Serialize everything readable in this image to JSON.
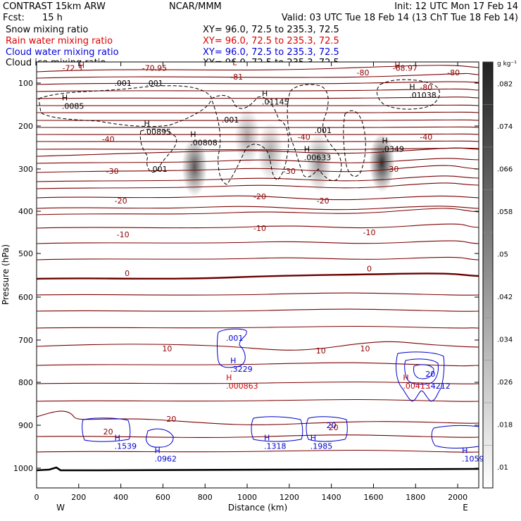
{
  "header": {
    "model": "CONTRAST 15km ARW",
    "center": "NCAR/MMM",
    "init": "Init: 12 UTC Mon 17 Feb 14",
    "fcst_label": "Fcst:",
    "fcst_value": "15 h",
    "valid": "Valid: 03 UTC Tue 18 Feb 14 (13 ChT Tue 18 Feb 14)"
  },
  "fields": [
    {
      "name": "Snow mixing ratio",
      "xy": "XY=  96.0, 72.5 to 235.3, 72.5",
      "color": "#000000"
    },
    {
      "name": "Rain water mixing ratio",
      "xy": "XY=  96.0, 72.5 to 235.3, 72.5",
      "color": "#dd0000"
    },
    {
      "name": "Cloud water mixing ratio",
      "xy": "XY=  96.0, 72.5 to 235.3, 72.5",
      "color": "#0000dd"
    },
    {
      "name": "Cloud ice mixing ratio",
      "xy": "XY=  96.0, 72.5 to 235.3, 72.5",
      "color": "#000000"
    }
  ],
  "chart_data": {
    "type": "heatmap",
    "xlabel": "Distance (km)",
    "ylabel": "Pressure (hPa)",
    "xlim": [
      0,
      2100
    ],
    "ylim": [
      1050,
      30
    ],
    "x_ticks": [
      "0",
      "200",
      "400",
      "600",
      "800",
      "1000",
      "1200",
      "1400",
      "1600",
      "1800",
      "2000"
    ],
    "y_ticks": [
      "100",
      "200",
      "300",
      "400",
      "500",
      "600",
      "700",
      "800",
      "900",
      "1000"
    ],
    "west_label": "W",
    "east_label": "E",
    "colorbar": {
      "unit": "g kg⁻¹",
      "labels": [
        ".01",
        ".018",
        ".026",
        ".034",
        ".042",
        ".05",
        ".058",
        ".066",
        ".074",
        ".082"
      ]
    },
    "snow_maxima": [
      {
        "x": 750,
        "p": 295,
        "value": 0.07
      },
      {
        "x": 1000,
        "p": 225,
        "value": 0.03
      },
      {
        "x": 1110,
        "p": 260,
        "value": 0.03
      },
      {
        "x": 1340,
        "p": 285,
        "value": 0.04
      },
      {
        "x": 1640,
        "p": 285,
        "value": 0.09
      }
    ],
    "temperature_labels": [
      {
        "x": 170,
        "p": 65,
        "text": "-72.3"
      },
      {
        "x": 560,
        "p": 65,
        "text": "-70.95"
      },
      {
        "x": 950,
        "p": 85,
        "text": "-81"
      },
      {
        "x": 1550,
        "p": 75,
        "text": "-80"
      },
      {
        "x": 1750,
        "p": 65,
        "text": "-68.97"
      },
      {
        "x": 1980,
        "p": 75,
        "text": "-80"
      },
      {
        "x": 1850,
        "p": 110,
        "text": "-80"
      },
      {
        "x": 340,
        "p": 230,
        "text": "-40"
      },
      {
        "x": 1270,
        "p": 225,
        "text": "-40"
      },
      {
        "x": 1850,
        "p": 225,
        "text": "-40"
      },
      {
        "x": 360,
        "p": 305,
        "text": "-30"
      },
      {
        "x": 1200,
        "p": 305,
        "text": "-30"
      },
      {
        "x": 1690,
        "p": 300,
        "text": "-30"
      },
      {
        "x": 400,
        "p": 375,
        "text": "-20"
      },
      {
        "x": 1060,
        "p": 365,
        "text": "-20"
      },
      {
        "x": 1360,
        "p": 375,
        "text": "-20"
      },
      {
        "x": 410,
        "p": 455,
        "text": "-10"
      },
      {
        "x": 1060,
        "p": 440,
        "text": "-10"
      },
      {
        "x": 1580,
        "p": 450,
        "text": "-10"
      },
      {
        "x": 430,
        "p": 545,
        "text": "0"
      },
      {
        "x": 1580,
        "p": 535,
        "text": "0"
      },
      {
        "x": 620,
        "p": 720,
        "text": "10"
      },
      {
        "x": 1350,
        "p": 725,
        "text": "10"
      },
      {
        "x": 1560,
        "p": 720,
        "text": "10"
      },
      {
        "x": 640,
        "p": 885,
        "text": "20"
      },
      {
        "x": 340,
        "p": 915,
        "text": "20"
      },
      {
        "x": 1410,
        "p": 905,
        "text": "20"
      }
    ],
    "extrema_labels": [
      {
        "kind": "low",
        "x": 930,
        "p": 58,
        "text": "L",
        "color": "#8b0000"
      },
      {
        "kind": "high",
        "x": 200,
        "p": 65,
        "text": "H",
        "color": "#8b0000"
      },
      {
        "kind": "high",
        "x": 1700,
        "p": 65,
        "text": "H",
        "color": "#8b0000"
      },
      {
        "kind": "ice_high",
        "x": 120,
        "p": 140,
        "text": "H",
        "value": ".0085"
      },
      {
        "kind": "ice_high",
        "x": 510,
        "p": 200,
        "text": "H",
        "value": ".00895"
      },
      {
        "kind": "ice_high",
        "x": 730,
        "p": 225,
        "text": "H",
        "value": ".00808"
      },
      {
        "kind": "ice_high",
        "x": 1070,
        "p": 130,
        "text": "H",
        "value": ".01145"
      },
      {
        "kind": "ice_high",
        "x": 1270,
        "p": 260,
        "text": "H",
        "value": ".00633"
      },
      {
        "kind": "ice_high",
        "x": 1640,
        "p": 240,
        "text": "H",
        "value": ".0349"
      },
      {
        "kind": "ice_high",
        "x": 1770,
        "p": 115,
        "text": "H",
        "value": ".01038"
      },
      {
        "kind": "cloud_high",
        "x": 920,
        "p": 755,
        "text": "H",
        "value": ".3229"
      },
      {
        "kind": "cloud_high",
        "x": 370,
        "p": 935,
        "text": "H",
        "value": ".1539"
      },
      {
        "kind": "cloud_high",
        "x": 560,
        "p": 965,
        "text": "H",
        "value": ".0962"
      },
      {
        "kind": "cloud_high",
        "x": 1080,
        "p": 935,
        "text": "H",
        "value": ".1318"
      },
      {
        "kind": "cloud_high",
        "x": 1300,
        "p": 935,
        "text": "H",
        "value": ".1985"
      },
      {
        "kind": "cloud_high",
        "x": 2020,
        "p": 965,
        "text": "H",
        "value": ".1059"
      },
      {
        "kind": "cloud_high",
        "x": 1860,
        "p": 795,
        "text": "",
        "value": ".4212"
      },
      {
        "kind": "rain_high",
        "x": 900,
        "p": 795,
        "text": "H",
        "value": ".000863"
      },
      {
        "kind": "rain_high",
        "x": 1740,
        "p": 795,
        "text": "H",
        "value": ".00413"
      }
    ],
    "contour_value_labels": [
      {
        "x": 410,
        "p": 100,
        "text": ".001",
        "color": "#000000"
      },
      {
        "x": 560,
        "p": 100,
        "text": ".001",
        "color": "#000000"
      },
      {
        "x": 920,
        "p": 185,
        "text": ".001",
        "color": "#000000"
      },
      {
        "x": 1360,
        "p": 210,
        "text": ".001",
        "color": "#000000"
      },
      {
        "x": 580,
        "p": 300,
        "text": ".001",
        "color": "#000000"
      },
      {
        "x": 940,
        "p": 695,
        "text": ".001",
        "color": "#0000dd"
      },
      {
        "x": 1400,
        "p": 900,
        "text": "20",
        "color": "#0000dd"
      },
      {
        "x": 1870,
        "p": 780,
        "text": "20",
        "color": "#0000dd"
      }
    ]
  }
}
